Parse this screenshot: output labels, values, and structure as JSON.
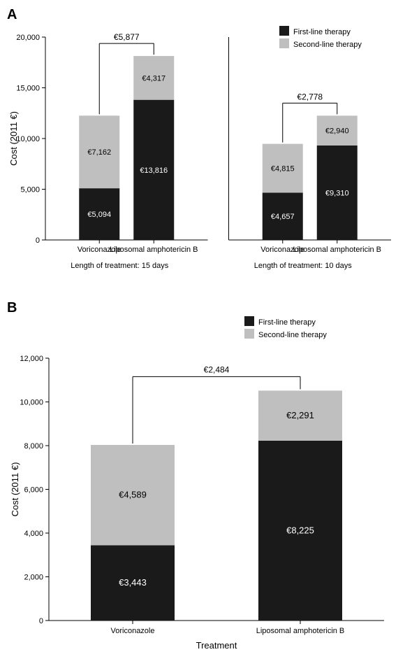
{
  "legend": {
    "first_line": "First-line therapy",
    "second_line": "Second-line therapy",
    "first_color": "#1a1a1a",
    "second_color": "#bfbfbf"
  },
  "y_axis_label": "Cost (2011 €)",
  "panelA": {
    "label": "A",
    "ymax": 20000,
    "ytick_step": 5000,
    "groups": [
      {
        "caption_prefix": "Length of treatment:",
        "caption_days": "15 days",
        "diff_label": "€5,877",
        "bars": [
          {
            "x_label": "Voriconazole",
            "first_value": 5094,
            "first_label": "€5,094",
            "second_value": 7162,
            "second_label": "€7,162"
          },
          {
            "x_label": "Liposomal amphotericin B",
            "first_value": 13816,
            "first_label": "€13,816",
            "second_value": 4317,
            "second_label": "€4,317"
          }
        ]
      },
      {
        "caption_prefix": "Length of treatment:",
        "caption_days": "10 days",
        "diff_label": "€2,778",
        "bars": [
          {
            "x_label": "Voriconazole",
            "first_value": 4657,
            "first_label": "€4,657",
            "second_value": 4815,
            "second_label": "€4,815"
          },
          {
            "x_label": "Liposomal amphotericin B",
            "first_value": 9310,
            "first_label": "€9,310",
            "second_value": 2940,
            "second_label": "€2,940"
          }
        ]
      }
    ]
  },
  "panelB": {
    "label": "B",
    "ymax": 12000,
    "ytick_step": 2000,
    "x_axis_label": "Treatment",
    "diff_label": "€2,484",
    "bars": [
      {
        "x_label": "Voriconazole",
        "first_value": 3443,
        "first_label": "€3,443",
        "second_value": 4589,
        "second_label": "€4,589"
      },
      {
        "x_label": "Liposomal amphotericin B",
        "first_value": 8225,
        "first_label": "€8,225",
        "second_value": 2291,
        "second_label": "€2,291"
      }
    ]
  },
  "colors": {
    "axis": "#000000",
    "text_light": "#ffffff",
    "text_dark": "#000000"
  },
  "fonts": {
    "axis_tick": 11,
    "axis_label": 13,
    "bar_value": 11,
    "diff": 12,
    "caption": 11,
    "legend": 11
  }
}
